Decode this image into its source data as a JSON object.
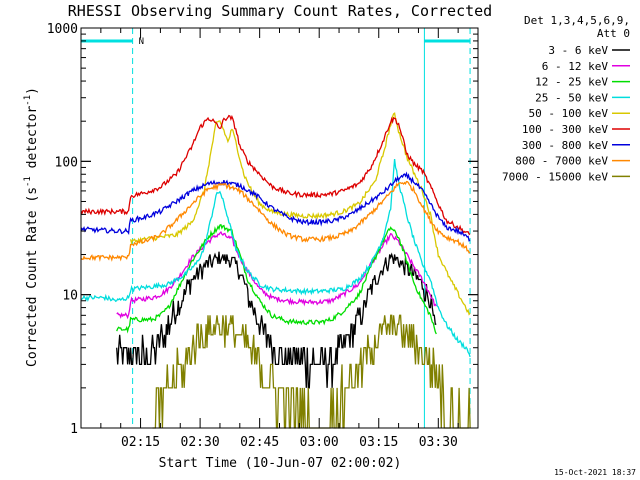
{
  "chart_data": {
    "type": "line",
    "title": "RHESSI Observing Summary Count Rates, Corrected",
    "xlabel": "Start Time (10-Jun-07 02:00:02)",
    "ylabel": "Corrected Count Rate (s⁻¹ detector⁻¹)",
    "ylabel_parts": [
      "Corrected Count Rate (s",
      "-1",
      " detector",
      "-1",
      ")"
    ],
    "yscale": "log",
    "ylim": [
      1,
      1000
    ],
    "xlim_minutes": [
      0,
      100
    ],
    "x_ticks": [
      {
        "label": "02:15",
        "min": 15
      },
      {
        "label": "02:30",
        "min": 30
      },
      {
        "label": "02:45",
        "min": 45
      },
      {
        "label": "03:00",
        "min": 60
      },
      {
        "label": "03:15",
        "min": 75
      },
      {
        "label": "03:30",
        "min": 90
      }
    ],
    "y_ticks": [
      {
        "label": "1000",
        "v": 1000
      },
      {
        "label": "100",
        "v": 100
      },
      {
        "label": "10",
        "v": 10
      },
      {
        "label": "1",
        "v": 1
      }
    ],
    "legend_header": [
      "Det 1,3,4,5,6,9,",
      "Att 0"
    ],
    "legend_position": "right",
    "annotation_N": "N",
    "timestamp": "15-Oct-2021 18:37",
    "night_markers_min": [
      13,
      86.5,
      98
    ],
    "night_bars": [
      [
        0,
        13
      ],
      [
        86.5,
        98
      ]
    ],
    "series": [
      {
        "name": "3 - 6 keV",
        "color": "#000000",
        "t": [
          9,
          12,
          12.5,
          18,
          20,
          22,
          25,
          28,
          32,
          35,
          38,
          40,
          42,
          45,
          48,
          52,
          56,
          60,
          63,
          66,
          70,
          73,
          76,
          78,
          80,
          82,
          84,
          86,
          88,
          89.5
        ],
        "v": [
          3.5,
          3.5,
          3.6,
          3.6,
          4.5,
          6,
          9,
          13,
          17,
          19,
          18,
          15,
          10,
          6,
          4.2,
          3.4,
          3.2,
          3.2,
          3.3,
          4,
          6.5,
          11,
          16,
          19,
          18,
          16,
          14,
          12,
          9,
          5
        ]
      },
      {
        "name": "6 - 12 keV",
        "color": "#e000e0",
        "t": [
          9,
          12,
          12.5,
          18,
          20,
          22,
          25,
          28,
          32,
          35,
          38,
          40,
          42,
          45,
          48,
          52,
          56,
          60,
          63,
          66,
          70,
          73,
          76,
          78,
          80,
          82,
          84,
          86,
          88,
          89.5
        ],
        "v": [
          7,
          7,
          9,
          9.5,
          10,
          11,
          14,
          19,
          25,
          29,
          26,
          19,
          15,
          11,
          9.5,
          9,
          8.8,
          8.8,
          9,
          10,
          12,
          17,
          23,
          28,
          25,
          20,
          16,
          13,
          10,
          8
        ]
      },
      {
        "name": "12 - 25 keV",
        "color": "#00dd00",
        "t": [
          9,
          12,
          12.5,
          18,
          20,
          22,
          25,
          28,
          32,
          35,
          38,
          40,
          42,
          45,
          48,
          52,
          56,
          60,
          63,
          66,
          70,
          73,
          76,
          78,
          80,
          82,
          84,
          86,
          88,
          89.5
        ],
        "v": [
          5.5,
          5.5,
          6.5,
          6.5,
          7,
          8,
          12,
          18,
          27,
          33,
          30,
          20,
          13,
          9,
          7,
          6.3,
          6.2,
          6.2,
          6.5,
          7.5,
          10,
          16,
          25,
          32,
          27,
          18,
          12,
          9,
          7,
          5
        ]
      },
      {
        "name": "25 - 50 keV",
        "color": "#00dddd",
        "t": [
          0,
          6,
          9,
          12,
          12.5,
          18,
          22,
          26,
          29,
          31,
          33,
          34,
          35,
          37,
          39,
          42,
          45,
          48,
          52,
          56,
          60,
          63,
          66,
          70,
          73,
          76,
          78,
          79,
          80,
          82,
          84,
          86,
          88,
          90,
          92,
          95,
          97,
          98
        ],
        "v": [
          9.5,
          9.5,
          9,
          9.5,
          11,
          11.5,
          12,
          14,
          17,
          22,
          40,
          55,
          60,
          38,
          22,
          15,
          12,
          11,
          10.8,
          10.6,
          10.6,
          10.8,
          11,
          13,
          17,
          26,
          45,
          100,
          70,
          40,
          25,
          17,
          13,
          8,
          6,
          4.5,
          4,
          3.5
        ]
      },
      {
        "name": "50 - 100 keV",
        "color": "#d8c800",
        "t": [
          12.5,
          16,
          20,
          24,
          28,
          31,
          33,
          34,
          35,
          36,
          37,
          38,
          39,
          41,
          43,
          45,
          48,
          52,
          56,
          60,
          63,
          66,
          70,
          74,
          76,
          78,
          79,
          80,
          82,
          84,
          86,
          88,
          90,
          93,
          96,
          98
        ],
        "v": [
          25,
          26,
          27,
          28,
          35,
          60,
          130,
          190,
          200,
          170,
          140,
          175,
          140,
          80,
          60,
          48,
          42,
          40,
          39,
          39,
          40,
          42,
          48,
          70,
          110,
          190,
          230,
          170,
          110,
          80,
          60,
          40,
          20,
          13,
          9,
          7
        ]
      },
      {
        "name": "100 - 300 keV",
        "color": "#dd0000",
        "t": [
          0,
          9,
          12,
          12.5,
          16,
          20,
          24,
          28,
          30,
          32,
          33,
          34,
          35,
          36,
          37,
          38,
          39,
          40,
          42,
          45,
          48,
          52,
          56,
          60,
          63,
          66,
          70,
          73,
          76,
          78,
          79,
          80,
          81,
          82,
          84,
          86,
          88,
          90,
          92,
          95,
          98
        ],
        "v": [
          42,
          42,
          42,
          55,
          58,
          64,
          80,
          130,
          180,
          210,
          205,
          190,
          175,
          205,
          215,
          210,
          175,
          130,
          100,
          80,
          65,
          58,
          56,
          56,
          57,
          60,
          68,
          90,
          140,
          200,
          210,
          190,
          150,
          115,
          95,
          85,
          65,
          48,
          36,
          32,
          28
        ]
      },
      {
        "name": "300 - 800 keV",
        "color": "#0000dd",
        "t": [
          0,
          9,
          12,
          12.5,
          16,
          20,
          24,
          28,
          32,
          36,
          40,
          44,
          48,
          52,
          56,
          60,
          64,
          68,
          72,
          76,
          80,
          82,
          84,
          86,
          88,
          90,
          92,
          95,
          98
        ],
        "v": [
          31,
          30,
          30,
          36,
          38,
          42,
          50,
          60,
          68,
          70,
          66,
          56,
          45,
          38,
          35,
          35,
          36,
          40,
          48,
          58,
          75,
          78,
          70,
          60,
          48,
          38,
          32,
          30,
          26
        ]
      },
      {
        "name": "800 - 7000 keV",
        "color": "#ff8800",
        "t": [
          0,
          9,
          12,
          12.5,
          16,
          20,
          24,
          28,
          32,
          36,
          40,
          44,
          48,
          52,
          56,
          60,
          64,
          68,
          72,
          76,
          80,
          82,
          84,
          86,
          88,
          90,
          92,
          95,
          98
        ],
        "v": [
          19,
          19,
          19,
          24,
          25,
          28,
          36,
          48,
          62,
          67,
          60,
          46,
          34,
          28,
          26,
          26,
          27,
          30,
          38,
          50,
          68,
          70,
          60,
          46,
          36,
          30,
          27,
          25,
          21
        ]
      },
      {
        "name": "7000 - 15000 keV",
        "color": "#808000",
        "t": [
          18,
          20,
          22,
          24,
          26,
          28,
          30,
          32,
          35,
          38,
          41,
          43,
          45,
          47,
          50,
          53,
          56,
          59,
          62,
          64,
          66,
          68,
          70,
          72,
          74,
          76,
          78,
          80,
          82,
          84,
          86,
          88,
          90,
          92,
          94,
          96,
          98
        ],
        "v": [
          1,
          1.5,
          2,
          2.5,
          3,
          4,
          5,
          5.5,
          6,
          5.5,
          4.5,
          3.8,
          3,
          2.5,
          2,
          1.5,
          1.2,
          1,
          1,
          1.3,
          1.8,
          2.2,
          2.8,
          3.5,
          4.5,
          5.5,
          6,
          6,
          5,
          4.5,
          3.6,
          3,
          2.3,
          1.7,
          1.3,
          1.1,
          1
        ]
      }
    ]
  }
}
